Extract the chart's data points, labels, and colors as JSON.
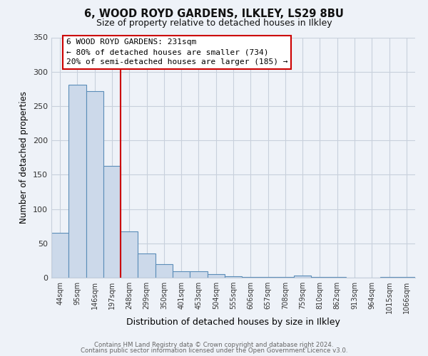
{
  "title": "6, WOOD ROYD GARDENS, ILKLEY, LS29 8BU",
  "subtitle": "Size of property relative to detached houses in Ilkley",
  "xlabel": "Distribution of detached houses by size in Ilkley",
  "ylabel": "Number of detached properties",
  "bar_labels": [
    "44sqm",
    "95sqm",
    "146sqm",
    "197sqm",
    "248sqm",
    "299sqm",
    "350sqm",
    "401sqm",
    "453sqm",
    "504sqm",
    "555sqm",
    "606sqm",
    "657sqm",
    "708sqm",
    "759sqm",
    "810sqm",
    "862sqm",
    "913sqm",
    "964sqm",
    "1015sqm",
    "1066sqm"
  ],
  "bar_values": [
    65,
    281,
    272,
    163,
    67,
    35,
    20,
    9,
    9,
    5,
    2,
    1,
    1,
    1,
    3,
    1,
    1,
    0,
    0,
    1,
    1
  ],
  "bar_color": "#ccd9ea",
  "bar_edge_color": "#5b8db8",
  "grid_color": "#c8d0dc",
  "background_color": "#eef2f8",
  "red_line_index": 4,
  "annotation_line1": "6 WOOD ROYD GARDENS: 231sqm",
  "annotation_line2": "← 80% of detached houses are smaller (734)",
  "annotation_line3": "20% of semi-detached houses are larger (185) →",
  "annotation_box_color": "#ffffff",
  "annotation_border_color": "#cc0000",
  "red_line_color": "#cc0000",
  "ylim": [
    0,
    350
  ],
  "yticks": [
    0,
    50,
    100,
    150,
    200,
    250,
    300,
    350
  ],
  "footer1": "Contains HM Land Registry data © Crown copyright and database right 2024.",
  "footer2": "Contains public sector information licensed under the Open Government Licence v3.0."
}
